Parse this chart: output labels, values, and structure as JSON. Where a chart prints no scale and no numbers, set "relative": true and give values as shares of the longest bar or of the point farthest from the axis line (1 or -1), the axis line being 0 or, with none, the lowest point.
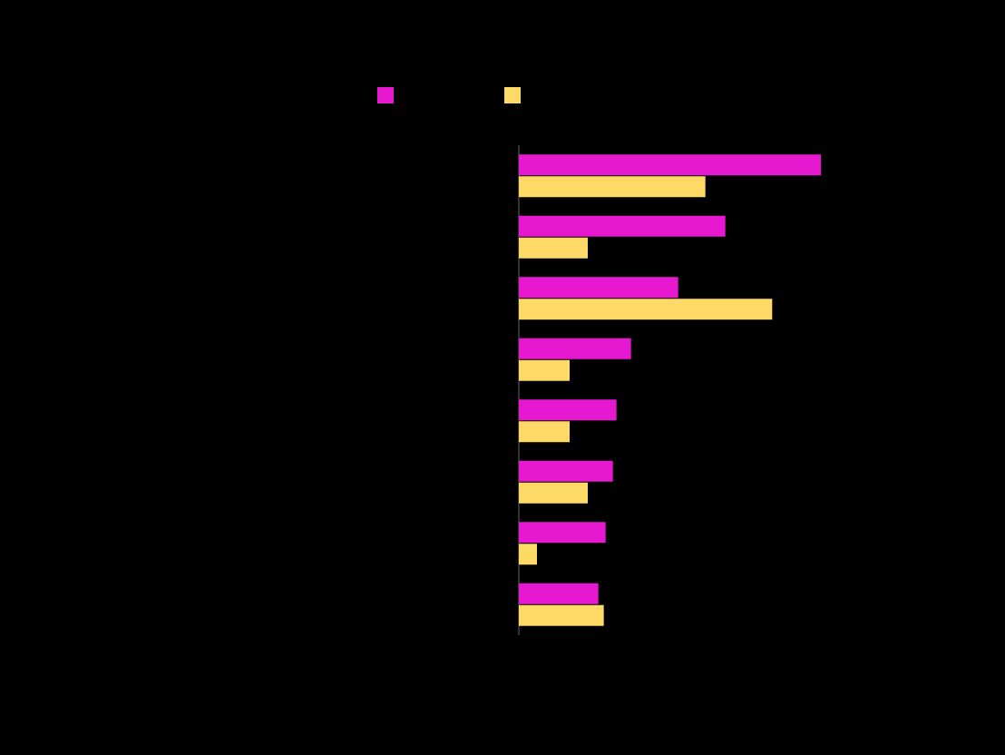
{
  "chart_data": {
    "type": "bar",
    "orientation": "horizontal",
    "relative": true,
    "categories": [
      null,
      null,
      null,
      null,
      null,
      null,
      null,
      null
    ],
    "series": [
      {
        "color": "#e619d0",
        "values": [
          1,
          0.683,
          0.527,
          0.371,
          0.323,
          0.311,
          0.287,
          0.263
        ]
      },
      {
        "color": "#ffd966",
        "values": [
          0.617,
          0.228,
          0.838,
          0.168,
          0.168,
          0.228,
          0.06,
          0.281
        ]
      }
    ]
  }
}
